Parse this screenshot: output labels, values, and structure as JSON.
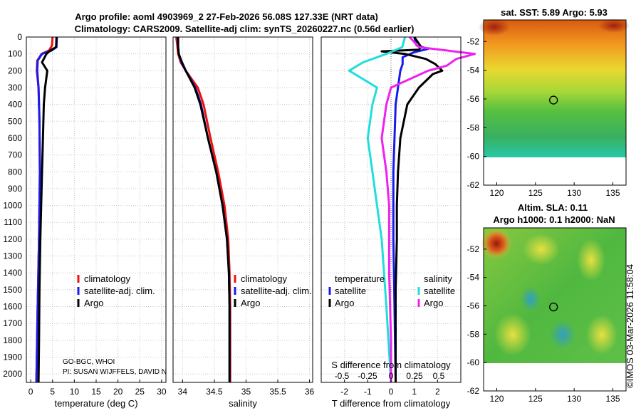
{
  "header": {
    "title_line1": "Argo profile: aoml 4903969_2 27-Feb-2026 56.08S 127.33E (NRT data)",
    "title_line2": "Climatology: CARS2009. Satellite-adj clim: synTS_20260227.nc (0.56d earlier)"
  },
  "watermark": "©IMOS 03-Mar-2026 11:58:04",
  "colors": {
    "climatology": "#ee1111",
    "satellite": "#1a1aee",
    "argo": "#000000",
    "sal_satellite": "#22dddd",
    "sal_argo": "#ee22ee"
  },
  "chart_data": [
    {
      "type": "line",
      "name": "temperature-profile",
      "xlabel": "temperature (deg C)",
      "ylabel": "depth",
      "xlim": [
        -1,
        31
      ],
      "ylim": [
        2050,
        0
      ],
      "xticks": [
        0,
        5,
        10,
        15,
        20,
        25,
        30
      ],
      "yticks": [
        0,
        100,
        200,
        300,
        400,
        500,
        600,
        700,
        800,
        900,
        1000,
        1100,
        1200,
        1300,
        1400,
        1500,
        1600,
        1700,
        1800,
        1900,
        2000
      ],
      "legend": [
        "climatology",
        "satellite-adj. clim.",
        "Argo"
      ],
      "notes": [
        "GO-BGC, WHOI",
        "PI: SUSAN WIJFFELS, DAVID N"
      ],
      "series": [
        {
          "name": "climatology",
          "depth": [
            0,
            50,
            80,
            100,
            140,
            200,
            300,
            500,
            800,
            1200,
            1600,
            2050
          ],
          "values": [
            5.0,
            4.9,
            4.2,
            2.5,
            1.5,
            1.4,
            1.8,
            2.0,
            2.1,
            1.9,
            1.6,
            1.3
          ]
        },
        {
          "name": "satellite-adj. clim.",
          "depth": [
            0,
            60,
            80,
            100,
            140,
            200,
            300,
            500,
            800,
            1200,
            1600,
            2050
          ],
          "values": [
            6.0,
            5.9,
            4.8,
            2.6,
            1.6,
            1.5,
            1.8,
            2.0,
            2.1,
            1.9,
            1.6,
            1.3
          ]
        },
        {
          "name": "Argo",
          "depth": [
            0,
            60,
            80,
            100,
            150,
            200,
            300,
            400,
            600,
            800,
            1000,
            1200,
            1500,
            1800,
            2050
          ],
          "values": [
            5.9,
            5.8,
            4.5,
            3.6,
            2.6,
            3.8,
            3.3,
            3.0,
            2.8,
            2.6,
            2.4,
            2.2,
            2.0,
            1.9,
            1.8
          ]
        }
      ]
    },
    {
      "type": "line",
      "name": "salinity-profile",
      "xlabel": "salinity",
      "xlim": [
        33.85,
        36.05
      ],
      "ylim": [
        2050,
        0
      ],
      "xticks": [
        34,
        34.5,
        35,
        35.5,
        36
      ],
      "xticklabels": [
        "34",
        "34.5",
        "35",
        "35.5",
        "36"
      ],
      "legend": [
        "climatology",
        "satellite-adj. clim.",
        "Argo"
      ],
      "series": [
        {
          "name": "climatology",
          "depth": [
            0,
            60,
            100,
            150,
            200,
            300,
            400,
            600,
            800,
            1000,
            1200,
            1400,
            1600,
            2050
          ],
          "values": [
            33.9,
            33.92,
            33.93,
            33.97,
            34.05,
            34.24,
            34.33,
            34.44,
            34.56,
            34.66,
            34.72,
            34.74,
            34.75,
            34.75
          ]
        },
        {
          "name": "satellite-adj. clim.",
          "depth": [
            0,
            60,
            100,
            150,
            200,
            300,
            400,
            600,
            800,
            1000,
            1200,
            1400,
            1600,
            2050
          ],
          "values": [
            33.92,
            33.93,
            33.94,
            33.98,
            34.05,
            34.2,
            34.29,
            34.4,
            34.53,
            34.63,
            34.7,
            34.73,
            34.74,
            34.74
          ]
        },
        {
          "name": "Argo",
          "depth": [
            0,
            60,
            100,
            150,
            200,
            300,
            400,
            600,
            800,
            1000,
            1200,
            1400,
            1600,
            2050
          ],
          "values": [
            33.93,
            33.93,
            33.94,
            33.99,
            34.05,
            34.19,
            34.28,
            34.4,
            34.53,
            34.63,
            34.7,
            34.73,
            34.74,
            34.74
          ]
        }
      ]
    },
    {
      "type": "line",
      "name": "difference-profile",
      "xlabel": "T difference from climatology",
      "toplabel": "S difference from climatology",
      "xlim": [
        -3,
        3
      ],
      "ylim": [
        2050,
        0
      ],
      "xticks": [
        -2,
        -1,
        0,
        1,
        2
      ],
      "top_ticks": [
        "-0.5",
        "-0.25",
        "0",
        "0.25",
        "0.5"
      ],
      "legend_left_title": "temperature",
      "legend_right_title": "salinity",
      "legend_left": [
        "satellite",
        "Argo"
      ],
      "legend_right": [
        "satellite",
        "Argo"
      ],
      "series": [
        {
          "name": "T satellite",
          "depth": [
            0,
            50,
            70,
            90,
            120,
            160,
            200,
            300,
            400,
            600,
            800,
            1200,
            1600,
            2050
          ],
          "values": [
            1.0,
            1.1,
            1.6,
            1.0,
            0.5,
            0.5,
            0.4,
            0.3,
            0.2,
            0.15,
            0.1,
            0.1,
            0.15,
            0.2
          ]
        },
        {
          "name": "T Argo",
          "depth": [
            0,
            60,
            75,
            85,
            100,
            130,
            160,
            200,
            220,
            300,
            400,
            600,
            800,
            1000,
            1200,
            1500,
            1800,
            2050
          ],
          "values": [
            1.0,
            1.3,
            1.2,
            -0.4,
            0.6,
            1.5,
            1.9,
            2.2,
            1.8,
            1.2,
            0.7,
            0.4,
            0.3,
            0.25,
            0.25,
            0.2,
            0.2,
            0.2
          ]
        },
        {
          "name": "S satellite",
          "depth": [
            0,
            60,
            100,
            150,
            200,
            300,
            400,
            600,
            800,
            1200,
            1600,
            2050
          ],
          "values": [
            0.15,
            0.12,
            -0.05,
            -0.3,
            -0.45,
            -0.15,
            -0.2,
            -0.25,
            -0.2,
            -0.1,
            -0.05,
            0.0
          ]
        },
        {
          "name": "S Argo",
          "depth": [
            0,
            60,
            80,
            100,
            130,
            170,
            200,
            300,
            400,
            600,
            800,
            1000,
            1400,
            1800,
            2050
          ],
          "values": [
            0.2,
            0.3,
            0.6,
            0.9,
            0.7,
            0.6,
            0.4,
            0.0,
            -0.05,
            -0.1,
            -0.05,
            -0.02,
            -0.02,
            0.0,
            0.0
          ]
        }
      ]
    },
    {
      "type": "heatmap",
      "name": "sst-map",
      "title": "sat. SST: 5.89 Argo: 5.93",
      "xticks": [
        120,
        125,
        130,
        135
      ],
      "yticks": [
        -52,
        -54,
        -56,
        -58,
        -60,
        -62
      ],
      "xlim": [
        118.3,
        136.7
      ],
      "ylim": [
        -62,
        -50.5
      ],
      "marker": {
        "lon": 127.33,
        "lat": -56.08
      }
    },
    {
      "type": "heatmap",
      "name": "sla-map",
      "title_line1": "Altim. SLA: 0.11",
      "title_line2": "Argo h1000: 0.1 h2000: NaN",
      "xticks": [
        120,
        125,
        130,
        135
      ],
      "yticks": [
        -52,
        -54,
        -56,
        -58,
        -60,
        -62
      ],
      "xlim": [
        118.3,
        136.7
      ],
      "ylim": [
        -62,
        -50.5
      ],
      "marker": {
        "lon": 127.33,
        "lat": -56.08
      }
    }
  ]
}
